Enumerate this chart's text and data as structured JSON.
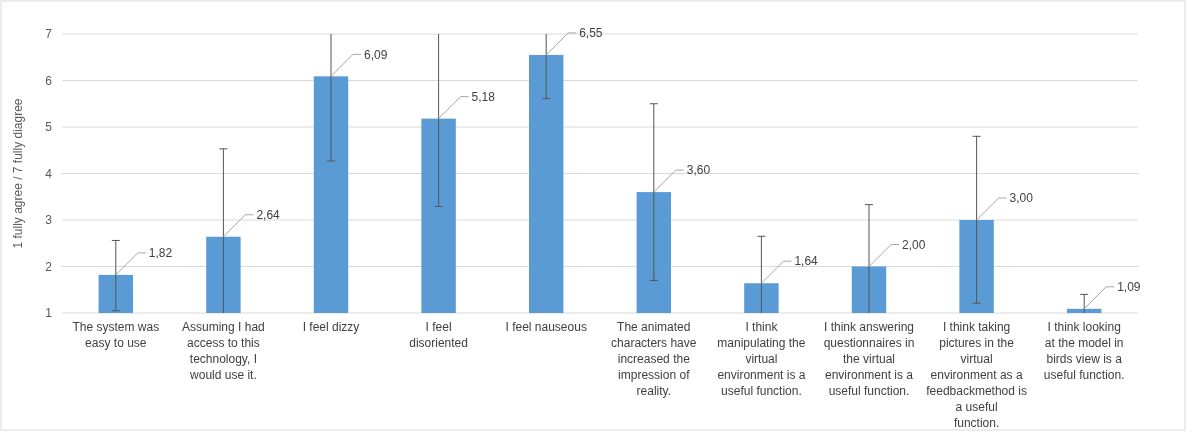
{
  "chart_data": {
    "type": "bar",
    "ylabel": "1 fully agree / 7 fully diagree",
    "categories": [
      "The system was easy to use",
      "Assuming I had access to this technology, I would use it.",
      "I feel dizzy",
      "I feel disoriented",
      "I feel nauseous",
      "The animated characters have increased the impression of reality.",
      "I think manipulating the virtual environment is a useful function.",
      "I think answering questionnaires in the virtual environment  is a useful function.",
      "I think taking pictures in the virtual environment as a feedbackmethod is a useful function.",
      "I think looking at the model in birds view  is a useful function."
    ],
    "values": [
      1.82,
      2.64,
      6.09,
      5.18,
      6.55,
      3.6,
      1.64,
      2,
      3,
      1.09
    ],
    "value_labels": [
      "1,82",
      "2,64",
      "6,09",
      "5,18",
      "6,55",
      "3,60",
      "1,64",
      "2,00",
      "3,00",
      "1,09"
    ],
    "errors": [
      [
        1.05,
        2.56
      ],
      [
        1,
        4.53
      ],
      [
        4.27,
        7
      ],
      [
        3.29,
        7
      ],
      [
        5.61,
        7
      ],
      [
        1.7,
        5.5
      ],
      [
        1,
        2.65
      ],
      [
        1,
        3.33
      ],
      [
        1.21,
        4.8
      ],
      [
        1,
        1.4
      ]
    ],
    "color": "#5b9bd5",
    "ylim": [
      1,
      7
    ],
    "yticks": [
      1,
      2,
      3,
      4,
      5,
      6,
      7
    ],
    "grid": "y"
  }
}
